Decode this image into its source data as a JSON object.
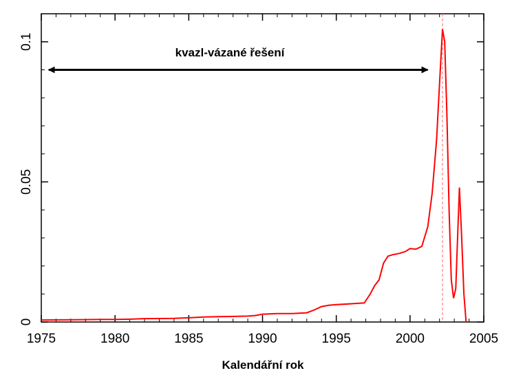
{
  "chart_data": {
    "type": "line",
    "title": "",
    "xlabel": "Kalendářní rok",
    "ylabel": "",
    "xlim": [
      1975,
      2005
    ],
    "ylim": [
      0,
      0.11
    ],
    "x_ticks": [
      1975,
      1980,
      1985,
      1990,
      1995,
      2000,
      2005
    ],
    "x_tick_labels": [
      "1975",
      "1980",
      "1985",
      "1990",
      "1995",
      "2000",
      "2005"
    ],
    "y_ticks": [
      0,
      0.05,
      0.1
    ],
    "y_tick_labels": [
      "0",
      "0.05",
      "0.1"
    ],
    "grid": false,
    "annotation": {
      "text": "kvazl-vázané řešení",
      "arrow_from_x": 1975.5,
      "arrow_to_x": 2001.2,
      "arrow_y": 0.09
    },
    "reference_line_x": 2002.2,
    "series": [
      {
        "color": "#ff0000",
        "x": [
          1975,
          1977,
          1979,
          1980,
          1981,
          1982,
          1984,
          1985,
          1986,
          1987,
          1988,
          1989,
          1989.5,
          1990,
          1991,
          1992,
          1993,
          1993.5,
          1994,
          1994.5,
          1995,
          1996,
          1996.9,
          1997.3,
          1997.6,
          1997.9,
          1998.2,
          1998.5,
          1998.8,
          1999.3,
          1999.7,
          2000,
          2000.4,
          2000.8,
          2001.2,
          2001.5,
          2001.8,
          2002.0,
          2002.2,
          2002.35,
          2002.5,
          2002.65,
          2002.8,
          2002.95,
          2003.1,
          2003.25,
          2003.35,
          2003.5,
          2003.65,
          2003.8
        ],
        "y": [
          0.0007,
          0.0008,
          0.0009,
          0.0009,
          0.001,
          0.0012,
          0.0013,
          0.0015,
          0.0018,
          0.0019,
          0.002,
          0.0021,
          0.0023,
          0.0028,
          0.003,
          0.003,
          0.0033,
          0.0043,
          0.0055,
          0.006,
          0.0062,
          0.0065,
          0.0068,
          0.01,
          0.013,
          0.015,
          0.021,
          0.0235,
          0.024,
          0.0245,
          0.0252,
          0.0262,
          0.026,
          0.027,
          0.034,
          0.046,
          0.065,
          0.085,
          0.1045,
          0.1,
          0.074,
          0.04,
          0.015,
          0.0085,
          0.012,
          0.034,
          0.048,
          0.03,
          0.01,
          0.0
        ]
      }
    ]
  }
}
